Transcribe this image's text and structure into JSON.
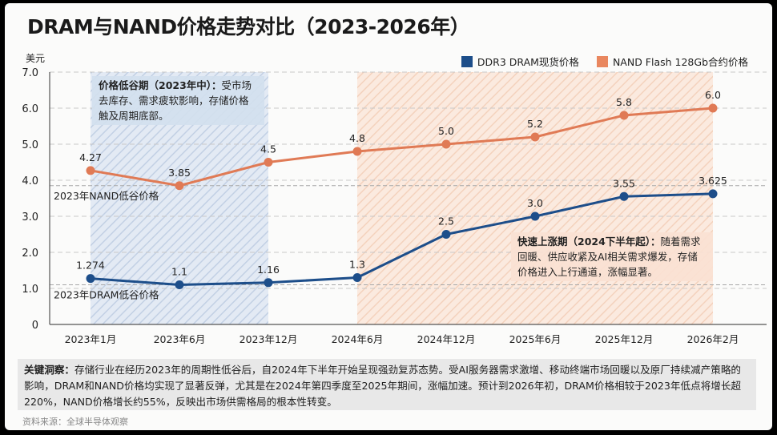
{
  "title": "DRAM与NAND价格走势对比（2023-2026年）",
  "unit_label": "美元",
  "legend": [
    {
      "label": "DDR3 DRAM现货价格",
      "color": "#1d4e8a"
    },
    {
      "label": "NAND Flash 128Gb合约价格",
      "color": "#e07a55"
    }
  ],
  "annotations": {
    "trough_period": {
      "lead": "价格低谷期（2023年中）：",
      "text": "受市场去库存、需求疲软影响，存储价格触及周期底部。",
      "color": "#d3dfee"
    },
    "rise_period": {
      "lead": "快速上涨期（2024下半年起）：",
      "text": "随着需求回暖、供应收紧及AI相关需求爆发，存储价格进入上行通道，涨幅显著。",
      "color": "#f9e1d3"
    },
    "nand_trough_label": "2023年NAND低谷价格",
    "dram_trough_label": "2023年DRAM低谷价格"
  },
  "insight": {
    "lead": "关键洞察：",
    "text": "存储行业在经历2023年的周期性低谷后，自2024年下半年开始呈现强劲复苏态势。受AI服务器需求激增、移动终端市场回暖以及原厂持续减产策略的影响，DRAM和NAND价格均实现了显著反弹，尤其是在2024年第四季度至2025年期间，涨幅加速。预计到2026年初，DRAM价格相较于2023年低点将增长超220%，NAND价格增长约55%，反映出市场供需格局的根本性转变。"
  },
  "source": "资料来源：全球半导体观察",
  "chart_data": {
    "type": "line",
    "title": "DRAM与NAND价格走势对比（2023-2026年）",
    "xlabel": "",
    "ylabel": "美元",
    "categories": [
      "2023年1月",
      "2023年6月",
      "2023年12月",
      "2024年6月",
      "2024年12月",
      "2025年6月",
      "2025年12月",
      "2026年2月"
    ],
    "series": [
      {
        "name": "DDR3 DRAM现货价格",
        "color": "#1d4e8a",
        "values": [
          1.274,
          1.1,
          1.16,
          1.3,
          2.5,
          3.0,
          3.55,
          3.625
        ],
        "labels": [
          "1.274",
          "1.1",
          "1.16",
          "1.3",
          "2.5",
          "3.0",
          "3.55",
          "3.625"
        ]
      },
      {
        "name": "NAND Flash 128Gb合约价格",
        "color": "#e07a55",
        "values": [
          4.27,
          3.85,
          4.5,
          4.8,
          5.0,
          5.2,
          5.8,
          6.0
        ],
        "labels": [
          "4.27",
          "3.85",
          "4.5",
          "4.8",
          "5.0",
          "5.2",
          "5.8",
          "6.0"
        ]
      }
    ],
    "yticks": [
      "0",
      "1.0",
      "2.0",
      "3.0",
      "4.0",
      "5.0",
      "6.0",
      "7.0"
    ],
    "ylim": [
      0,
      7
    ],
    "grid": true,
    "legend_position": "top-right",
    "reference_lines": [
      {
        "label": "2023年NAND低谷价格",
        "value": 3.85
      },
      {
        "label": "2023年DRAM低谷价格",
        "value": 1.1
      }
    ],
    "shaded_ranges": [
      {
        "from": "2023年1月",
        "to": "2023年12月",
        "label": "价格低谷期（2023年中）",
        "color": "#c9d7ea"
      },
      {
        "from": "2024年6月",
        "to": "2026年2月",
        "label": "快速上涨期（2024下半年起）",
        "color": "#f7d9c7"
      }
    ]
  }
}
